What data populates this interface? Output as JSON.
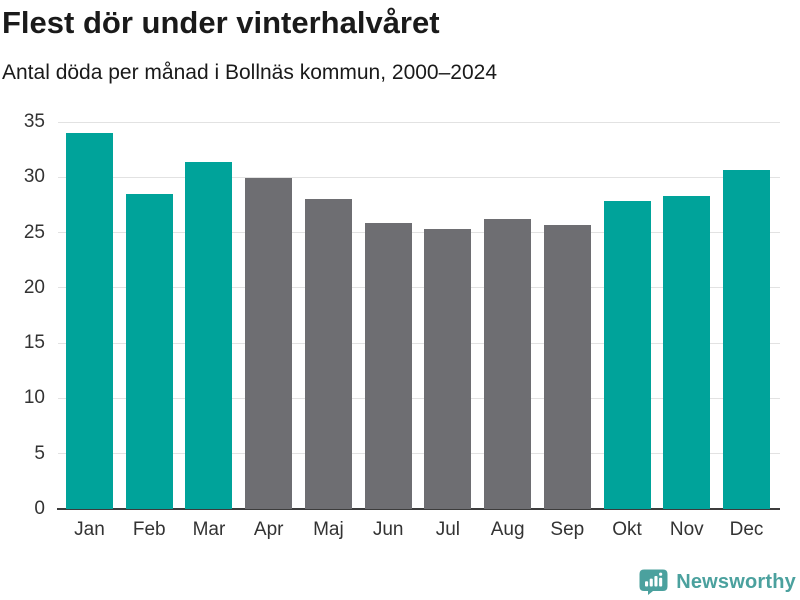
{
  "header": {
    "title": "Flest dör under vinterhalvåret",
    "subtitle": "Antal döda per månad i Bollnäs kommun, 2000–2024"
  },
  "chart_data": {
    "type": "bar",
    "title": "Flest dör under vinterhalvåret",
    "subtitle": "Antal döda per månad i Bollnäs kommun, 2000–2024",
    "categories": [
      "Jan",
      "Feb",
      "Mar",
      "Apr",
      "Maj",
      "Jun",
      "Jul",
      "Aug",
      "Sep",
      "Okt",
      "Nov",
      "Dec"
    ],
    "values": [
      34.0,
      28.5,
      31.4,
      29.9,
      28.0,
      25.9,
      25.3,
      26.2,
      25.7,
      27.9,
      28.3,
      30.7
    ],
    "bar_colors": [
      "winter",
      "winter",
      "winter",
      "summer",
      "summer",
      "summer",
      "summer",
      "summer",
      "summer",
      "winter",
      "winter",
      "winter"
    ],
    "colors": {
      "winter": "#00a39a",
      "summer": "#6e6e72"
    },
    "xlabel": "",
    "ylabel": "",
    "ylim": [
      0,
      35
    ],
    "yticks": [
      0,
      5,
      10,
      15,
      20,
      25,
      30,
      35
    ],
    "grid": "horizontal",
    "gridline_color": "#e2e2e2",
    "axis_color": "#3c3c3c",
    "tick_label_color": "#333333",
    "legend": "none"
  },
  "footer": {
    "brand": "Newsworthy",
    "brand_color": "#4ba19e",
    "logo_icon": "speech-bubble-bar-chart"
  }
}
